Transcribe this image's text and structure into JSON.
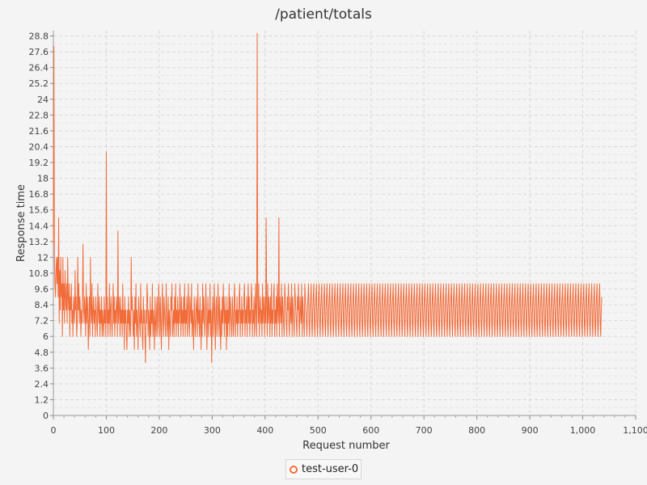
{
  "colors": {
    "series": "#f26c3a",
    "grid": "#d9d9d9",
    "background": "#f4f4f4"
  },
  "legend_item": {
    "label": "test-user-0",
    "icon": "circle-marker-icon"
  },
  "chart_data": {
    "type": "line",
    "title": "/patient/totals",
    "xlabel": "Request number",
    "ylabel": "Response time",
    "xlim": [
      0,
      1100
    ],
    "ylim": [
      0,
      29.2
    ],
    "grid": true,
    "legend_position": "bottom",
    "x_ticks": [
      "0",
      "100",
      "200",
      "300",
      "400",
      "500",
      "600",
      "700",
      "800",
      "900",
      "1,000",
      "1,100"
    ],
    "y_ticks": [
      "0",
      "1.2",
      "2.4",
      "3.6",
      "4.8",
      "6",
      "7.2",
      "8.4",
      "9.6",
      "10.8",
      "12",
      "13.2",
      "14.4",
      "15.6",
      "16.8",
      "18",
      "19.2",
      "20.4",
      "21.6",
      "22.8",
      "24",
      "25.2",
      "26.4",
      "27.6",
      "28.8"
    ],
    "series": [
      {
        "name": "test-user-0",
        "x_start": 0,
        "x_step": 1,
        "values": [
          13,
          28,
          12,
          10,
          9,
          11,
          12,
          10,
          12,
          9,
          15,
          7,
          11,
          8,
          12,
          9,
          10,
          6,
          12,
          8,
          10,
          7,
          11,
          9,
          8,
          10,
          7,
          12,
          9,
          8,
          10,
          6,
          9,
          8,
          10,
          7,
          8,
          6,
          9,
          8,
          7,
          11,
          8,
          9,
          6,
          7,
          12,
          8,
          10,
          7,
          9,
          8,
          6,
          8,
          7,
          9,
          13,
          8,
          7,
          9,
          8,
          6,
          10,
          7,
          9,
          8,
          5,
          7,
          9,
          6,
          12,
          8,
          7,
          10,
          6,
          8,
          9,
          7,
          8,
          6,
          9,
          8,
          7,
          6,
          10,
          8,
          7,
          9,
          6,
          8,
          7,
          9,
          6,
          8,
          7,
          6,
          9,
          7,
          8,
          6,
          20,
          7,
          9,
          6,
          8,
          7,
          10,
          6,
          8,
          9,
          7,
          6,
          8,
          10,
          7,
          9,
          6,
          8,
          7,
          9,
          8,
          6,
          14,
          7,
          9,
          8,
          6,
          9,
          7,
          8,
          6,
          10,
          7,
          8,
          5,
          9,
          7,
          8,
          6,
          5,
          8,
          7,
          9,
          6,
          8,
          7,
          6,
          12,
          8,
          9,
          7,
          6,
          8,
          5,
          9,
          7,
          10,
          6,
          8,
          7,
          5,
          9,
          8,
          7,
          6,
          10,
          7,
          8,
          6,
          5,
          9,
          7,
          8,
          6,
          4,
          8,
          7,
          10,
          9,
          6,
          8,
          7,
          5,
          9,
          6,
          8,
          7,
          10,
          6,
          8,
          7,
          5,
          9,
          7,
          6,
          8,
          9,
          6,
          7,
          10,
          8,
          6,
          9,
          7,
          5,
          8,
          10,
          7,
          6,
          9,
          8,
          7,
          6,
          10,
          8,
          6,
          7,
          9,
          5,
          8,
          7,
          6,
          9,
          8,
          10,
          6,
          7,
          8,
          6,
          9,
          7,
          10,
          6,
          8,
          7,
          9,
          6,
          8,
          7,
          10,
          8,
          6,
          9,
          7,
          8,
          6,
          9,
          7,
          10,
          6,
          8,
          7,
          9,
          6,
          8,
          10,
          7,
          6,
          9,
          8,
          7,
          10,
          6,
          8,
          7,
          5,
          9,
          8,
          6,
          7,
          9,
          8,
          6,
          10,
          7,
          8,
          6,
          9,
          7,
          5,
          8,
          6,
          10,
          7,
          9,
          8,
          6,
          7,
          10,
          8,
          5,
          7,
          9,
          6,
          8,
          7,
          10,
          6,
          8,
          4,
          7,
          9,
          6,
          8,
          10,
          7,
          5,
          8,
          9,
          6,
          7,
          10,
          8,
          6,
          9,
          7,
          5,
          8,
          6,
          9,
          7,
          10,
          8,
          6,
          9,
          7,
          8,
          5,
          9,
          6,
          8,
          7,
          10,
          6,
          9,
          8,
          7,
          6,
          9,
          8,
          6,
          7,
          10,
          9,
          6,
          8,
          7,
          9,
          6,
          8,
          7,
          9,
          10,
          6,
          8,
          7,
          9,
          6,
          8,
          7,
          9,
          10,
          6,
          8,
          7,
          9,
          6,
          8,
          10,
          7,
          9,
          6,
          8,
          7,
          10,
          9,
          6,
          8,
          7,
          9,
          6,
          8,
          10,
          7,
          6,
          29,
          9,
          7,
          10,
          6,
          8,
          9,
          7,
          8,
          6,
          10,
          7,
          9,
          8,
          6,
          9,
          7,
          15,
          8,
          6,
          10,
          7,
          9,
          8,
          6,
          9,
          7,
          10,
          6,
          8,
          7,
          9,
          10,
          6,
          8,
          7,
          9,
          6,
          10,
          8,
          7,
          15,
          6,
          9,
          8,
          7,
          10,
          6,
          9,
          8,
          7,
          6,
          10,
          9,
          8,
          7,
          6,
          9,
          8,
          10,
          7,
          6,
          9,
          8,
          7,
          10,
          6,
          9,
          8,
          7,
          6,
          10,
          9,
          8,
          7,
          6,
          9,
          8,
          10,
          7,
          6,
          9,
          8,
          7,
          10,
          6,
          9,
          8,
          7,
          6,
          10,
          9,
          8,
          7,
          6,
          8,
          9,
          10,
          7,
          6,
          8,
          9,
          10,
          7,
          6,
          8,
          9,
          10,
          7,
          6,
          8,
          9,
          10,
          7,
          6,
          8,
          9,
          10,
          7,
          6,
          8,
          9,
          10,
          7,
          6,
          8,
          9,
          10,
          7,
          6,
          8,
          9,
          10,
          7,
          6,
          8,
          9,
          10,
          7,
          6,
          8,
          9,
          10,
          7,
          6,
          8,
          9,
          10,
          7,
          6,
          8,
          9,
          10,
          7,
          6,
          8,
          9,
          10,
          7,
          6,
          8,
          9,
          10,
          7,
          6,
          8,
          9,
          10,
          7,
          6,
          8,
          9,
          10,
          7,
          6,
          8,
          9,
          10,
          7,
          6,
          8,
          9,
          10,
          7,
          6,
          8,
          9,
          10,
          7,
          6,
          8,
          9,
          10,
          7,
          6,
          8,
          9,
          10,
          7,
          6,
          8,
          9,
          10,
          7,
          6,
          8,
          9,
          10,
          7,
          6,
          8,
          9,
          10,
          7,
          6,
          8,
          9,
          10,
          7,
          6,
          8,
          9,
          10,
          7,
          6,
          8,
          9,
          10,
          7,
          6,
          8,
          9,
          10,
          7,
          6,
          8,
          9,
          10,
          7,
          6,
          8,
          9,
          10,
          7,
          6,
          8,
          9,
          10,
          7,
          6,
          8,
          9,
          10,
          7,
          6,
          8,
          9,
          10,
          7,
          6,
          8,
          9,
          10,
          7,
          6,
          8,
          9,
          10,
          7,
          6,
          8,
          9,
          10,
          7,
          6,
          8,
          9,
          10,
          7,
          6,
          8,
          9,
          10,
          7,
          6,
          8,
          9,
          10,
          7,
          6,
          8,
          9,
          10,
          7,
          6,
          8,
          9,
          10,
          7,
          6,
          8,
          9,
          10,
          7,
          6,
          8,
          9,
          10,
          7,
          6,
          8,
          9,
          10,
          7,
          6,
          8,
          9,
          10,
          7,
          6,
          8,
          9,
          10,
          7,
          6,
          8,
          9,
          10,
          7,
          6,
          8,
          9,
          10,
          7,
          6,
          8,
          9,
          10,
          7,
          6,
          8,
          9,
          10,
          7,
          6,
          8,
          9,
          10,
          7,
          6,
          8,
          9,
          10,
          7,
          6,
          8,
          9,
          10,
          7,
          6,
          8,
          9,
          10,
          7,
          6,
          8,
          9,
          10,
          7,
          6,
          8,
          9,
          10,
          7,
          6,
          8,
          9,
          10,
          7,
          6,
          8,
          9,
          10,
          7,
          6,
          8,
          9,
          10,
          7,
          6,
          8,
          9,
          10,
          7,
          6,
          8,
          9,
          10,
          7,
          6,
          8,
          9,
          10,
          7,
          6,
          8,
          9,
          10,
          7,
          6,
          8,
          9,
          10,
          7,
          6,
          8,
          9,
          10,
          7,
          6,
          8,
          9,
          10,
          7,
          6,
          8,
          9,
          10,
          7,
          6,
          8,
          9,
          10,
          7,
          6,
          8,
          9,
          10,
          7,
          6,
          8,
          9,
          10,
          7,
          6,
          8,
          9,
          10,
          7,
          6,
          8,
          9,
          10,
          7,
          6,
          8,
          9,
          10,
          7,
          6,
          8,
          9,
          10,
          7,
          6,
          8,
          9,
          10,
          7,
          6,
          8,
          9,
          10,
          7,
          6,
          8,
          9,
          10,
          7,
          6,
          8,
          9,
          10,
          7,
          6,
          8,
          9,
          10,
          7,
          6,
          8,
          9,
          10,
          7,
          6,
          8,
          9,
          10,
          7,
          6,
          8,
          9,
          10,
          7,
          6,
          8,
          9,
          10,
          7,
          6,
          8,
          9,
          10,
          7,
          6,
          8,
          9,
          10,
          7,
          6,
          8,
          9,
          10,
          7,
          6,
          8,
          9,
          10,
          7,
          6,
          8,
          9,
          10,
          7,
          6,
          8,
          9,
          10,
          7,
          6,
          8,
          9,
          10,
          7,
          6,
          8,
          9,
          10,
          7,
          6,
          8,
          9,
          10,
          7,
          6,
          8,
          9,
          10,
          7,
          6,
          8,
          9,
          10,
          7,
          6,
          8,
          9,
          10,
          7,
          6,
          8,
          9,
          10,
          7,
          6,
          8,
          9,
          10,
          7,
          6,
          8,
          9,
          10,
          7,
          6,
          8,
          9,
          10,
          7,
          6,
          8,
          9,
          10,
          7,
          6,
          8,
          9,
          10,
          7,
          6,
          8,
          9,
          10,
          7,
          6,
          8,
          9,
          10,
          7,
          6,
          8,
          9,
          10,
          7,
          6,
          8,
          9,
          10,
          7,
          6,
          8,
          9,
          10,
          7,
          6,
          8,
          9,
          10,
          7,
          6,
          8,
          9,
          10,
          7,
          6,
          8,
          9,
          10,
          7,
          6,
          8,
          9,
          10,
          7,
          6,
          8,
          9,
          10,
          7,
          6,
          8,
          9
        ]
      }
    ]
  }
}
